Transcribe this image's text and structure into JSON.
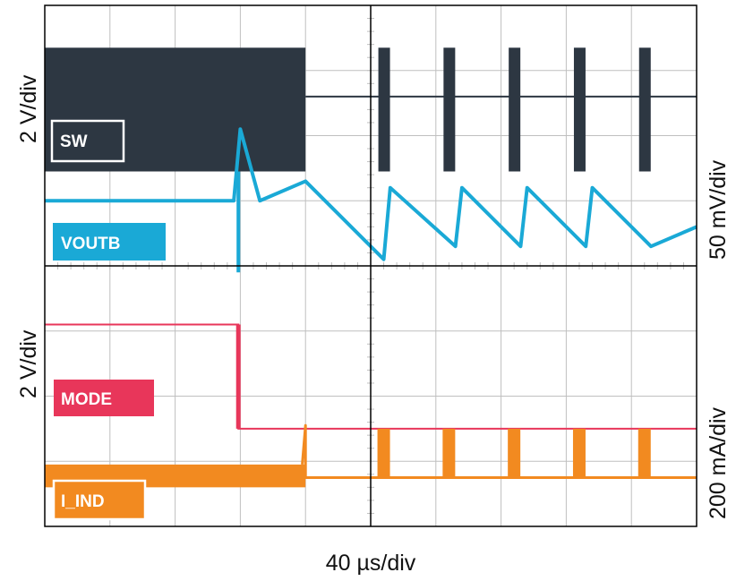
{
  "chart_data": {
    "type": "line",
    "title": "",
    "xlabel": "40 µs/div",
    "x_divisions": 10,
    "y_divisions": 8,
    "grid": true,
    "scale_labels": {
      "left_top": "2 V/div",
      "left_bottom": "2 V/div",
      "right_top": "50 mV/div",
      "right_bottom": "200 mA/div"
    },
    "series": [
      {
        "name": "SW",
        "color": "#2d3742",
        "style": "switching-burst",
        "x": [
          0,
          4,
          5.2,
          6.2,
          7.2,
          8.2,
          9.2,
          10
        ],
        "y": [
          7.6,
          7.6,
          7.6,
          7.6,
          7.6,
          7.6,
          7.6,
          7.6
        ],
        "note_div": "dense switching 0–4 div, bursts at 5.2, 6.2, 7.2, 8.2, 9.2 div"
      },
      {
        "name": "VOUTB",
        "color": "#1aa9d6",
        "style": "ripple",
        "x": [
          0,
          2.9,
          3.0,
          3.3,
          4.0,
          5.2,
          5.3,
          6.3,
          6.4,
          7.3,
          7.4,
          8.3,
          8.4,
          9.3,
          10
        ],
        "y": [
          5.0,
          5.0,
          6.1,
          5.0,
          5.3,
          4.1,
          5.2,
          4.3,
          5.2,
          4.3,
          5.2,
          4.3,
          5.2,
          4.3,
          4.6
        ]
      },
      {
        "name": "MODE",
        "color": "#e8365a",
        "style": "step",
        "x": [
          0,
          2.97,
          2.97,
          10
        ],
        "y": [
          3.1,
          3.1,
          1.5,
          1.5
        ]
      },
      {
        "name": "I_IND",
        "color": "#f28a20",
        "style": "inductor-current",
        "x": [
          0,
          4,
          5.2,
          6.2,
          7.2,
          8.2,
          9.2,
          10
        ],
        "y": [
          0.5,
          0.5,
          0.8,
          0.8,
          0.8,
          0.8,
          0.8,
          0.5
        ],
        "note_div": "CCM ripple 0–4 div, DCM pulses at 5.2, 6.2, 7.2, 8.2, 9.2 div"
      }
    ],
    "legend": [
      "SW",
      "VOUTB",
      "MODE",
      "I_IND"
    ]
  },
  "labels": {
    "sw": "SW",
    "voutb": "VOUTB",
    "mode": "MODE",
    "i_ind": "I_IND",
    "left_top_scale": "2 V/div",
    "left_bottom_scale": "2 V/div",
    "right_top_scale": "50 mV/div",
    "right_bottom_scale": "200 mA/div",
    "time_scale": "40 µs/div"
  },
  "colors": {
    "sw": "#2d3742",
    "voutb": "#1aa9d6",
    "mode": "#e8365a",
    "i_ind": "#f28a20",
    "grid": "#bfbfbf",
    "frame": "#000000"
  }
}
